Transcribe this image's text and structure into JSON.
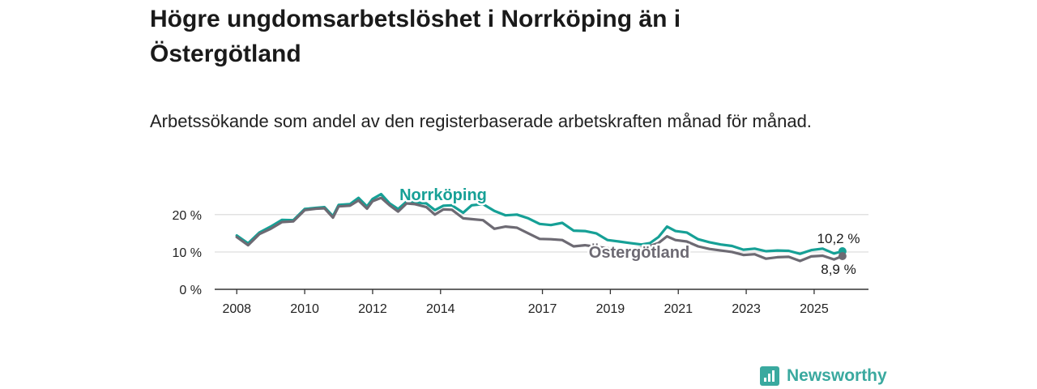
{
  "title": "Högre ungdomsarbetslöshet i Norrköping än i Östergötland",
  "subtitle": "Arbetssökande som andel av den registerbaserade arbetskraften månad för månad.",
  "brand": {
    "name": "Newsworthy",
    "color": "#3aa99f",
    "icon": "newsworthy-logo-icon"
  },
  "chart_data": {
    "type": "line",
    "x_ticks": [
      "2008",
      "2010",
      "2012",
      "2014",
      "2017",
      "2019",
      "2021",
      "2023",
      "2025"
    ],
    "y_ticks": [
      {
        "value": 0,
        "label": "0 %"
      },
      {
        "value": 10,
        "label": "10 %"
      },
      {
        "value": 20,
        "label": "20 %"
      }
    ],
    "ylim": [
      0,
      23
    ],
    "grid": true,
    "series": [
      {
        "name": "Norrköping",
        "color": "#16a096",
        "end_label": "10,2 %",
        "points": [
          [
            "2008-01",
            14.4
          ],
          [
            "2008-05",
            12.3
          ],
          [
            "2008-09",
            15.2
          ],
          [
            "2009-01",
            16.8
          ],
          [
            "2009-05",
            18.6
          ],
          [
            "2009-09",
            18.5
          ],
          [
            "2010-01",
            21.5
          ],
          [
            "2010-05",
            21.8
          ],
          [
            "2010-08",
            22.0
          ],
          [
            "2010-11",
            19.6
          ],
          [
            "2011-01",
            22.6
          ],
          [
            "2011-05",
            22.8
          ],
          [
            "2011-08",
            24.5
          ],
          [
            "2011-11",
            22.2
          ],
          [
            "2012-01",
            24.2
          ],
          [
            "2012-04",
            25.5
          ],
          [
            "2012-07",
            23.0
          ],
          [
            "2012-10",
            21.5
          ],
          [
            "2013-01",
            23.5
          ],
          [
            "2013-04",
            23.3
          ],
          [
            "2013-08",
            23.0
          ],
          [
            "2013-11",
            21.2
          ],
          [
            "2014-02",
            22.4
          ],
          [
            "2014-05",
            22.5
          ],
          [
            "2014-09",
            20.5
          ],
          [
            "2014-12",
            22.5
          ],
          [
            "2015-04",
            22.8
          ],
          [
            "2015-08",
            21.0
          ],
          [
            "2015-12",
            19.8
          ],
          [
            "2016-04",
            20.0
          ],
          [
            "2016-08",
            19.0
          ],
          [
            "2016-12",
            17.5
          ],
          [
            "2017-04",
            17.2
          ],
          [
            "2017-08",
            17.8
          ],
          [
            "2017-12",
            15.7
          ],
          [
            "2018-04",
            15.6
          ],
          [
            "2018-08",
            15.0
          ],
          [
            "2018-12",
            13.2
          ],
          [
            "2019-04",
            12.8
          ],
          [
            "2019-08",
            12.4
          ],
          [
            "2019-12",
            12.0
          ],
          [
            "2020-03",
            12.4
          ],
          [
            "2020-06",
            14.0
          ],
          [
            "2020-09",
            16.8
          ],
          [
            "2020-12",
            15.6
          ],
          [
            "2021-04",
            15.2
          ],
          [
            "2021-08",
            13.4
          ],
          [
            "2021-12",
            12.6
          ],
          [
            "2022-04",
            12.0
          ],
          [
            "2022-08",
            11.6
          ],
          [
            "2022-12",
            10.6
          ],
          [
            "2023-04",
            10.9
          ],
          [
            "2023-08",
            10.2
          ],
          [
            "2023-12",
            10.4
          ],
          [
            "2024-04",
            10.3
          ],
          [
            "2024-08",
            9.5
          ],
          [
            "2024-12",
            10.5
          ],
          [
            "2025-04",
            10.9
          ],
          [
            "2025-08",
            9.6
          ],
          [
            "2025-11",
            10.2
          ]
        ]
      },
      {
        "name": "Östergötland",
        "color": "#6d6a73",
        "end_label": "8,9 %",
        "points": [
          [
            "2008-01",
            14.0
          ],
          [
            "2008-05",
            11.8
          ],
          [
            "2008-09",
            14.8
          ],
          [
            "2009-01",
            16.2
          ],
          [
            "2009-05",
            18.0
          ],
          [
            "2009-09",
            18.2
          ],
          [
            "2010-01",
            21.2
          ],
          [
            "2010-05",
            21.6
          ],
          [
            "2010-08",
            21.7
          ],
          [
            "2010-11",
            19.2
          ],
          [
            "2011-01",
            22.2
          ],
          [
            "2011-05",
            22.4
          ],
          [
            "2011-08",
            23.8
          ],
          [
            "2011-11",
            21.6
          ],
          [
            "2012-01",
            23.6
          ],
          [
            "2012-04",
            24.5
          ],
          [
            "2012-07",
            22.5
          ],
          [
            "2012-10",
            20.8
          ],
          [
            "2013-01",
            23.0
          ],
          [
            "2013-04",
            22.8
          ],
          [
            "2013-08",
            22.0
          ],
          [
            "2013-11",
            20.0
          ],
          [
            "2014-02",
            21.4
          ],
          [
            "2014-05",
            21.3
          ],
          [
            "2014-09",
            19.0
          ],
          [
            "2014-12",
            18.8
          ],
          [
            "2015-04",
            18.5
          ],
          [
            "2015-08",
            16.2
          ],
          [
            "2015-12",
            16.8
          ],
          [
            "2016-04",
            16.5
          ],
          [
            "2016-08",
            15.0
          ],
          [
            "2016-12",
            13.5
          ],
          [
            "2017-04",
            13.4
          ],
          [
            "2017-08",
            13.2
          ],
          [
            "2017-12",
            11.5
          ],
          [
            "2018-04",
            11.8
          ],
          [
            "2018-08",
            11.4
          ],
          [
            "2018-12",
            11.0
          ],
          [
            "2019-04",
            10.6
          ],
          [
            "2019-08",
            10.8
          ],
          [
            "2019-12",
            11.2
          ],
          [
            "2020-03",
            11.6
          ],
          [
            "2020-06",
            12.4
          ],
          [
            "2020-09",
            14.2
          ],
          [
            "2020-12",
            13.2
          ],
          [
            "2021-04",
            12.8
          ],
          [
            "2021-08",
            11.5
          ],
          [
            "2021-12",
            10.8
          ],
          [
            "2022-04",
            10.4
          ],
          [
            "2022-08",
            10.0
          ],
          [
            "2022-12",
            9.2
          ],
          [
            "2023-04",
            9.4
          ],
          [
            "2023-08",
            8.2
          ],
          [
            "2023-12",
            8.6
          ],
          [
            "2024-04",
            8.7
          ],
          [
            "2024-08",
            7.6
          ],
          [
            "2024-12",
            8.8
          ],
          [
            "2025-04",
            9.0
          ],
          [
            "2025-08",
            8.0
          ],
          [
            "2025-11",
            8.9
          ]
        ]
      }
    ]
  }
}
